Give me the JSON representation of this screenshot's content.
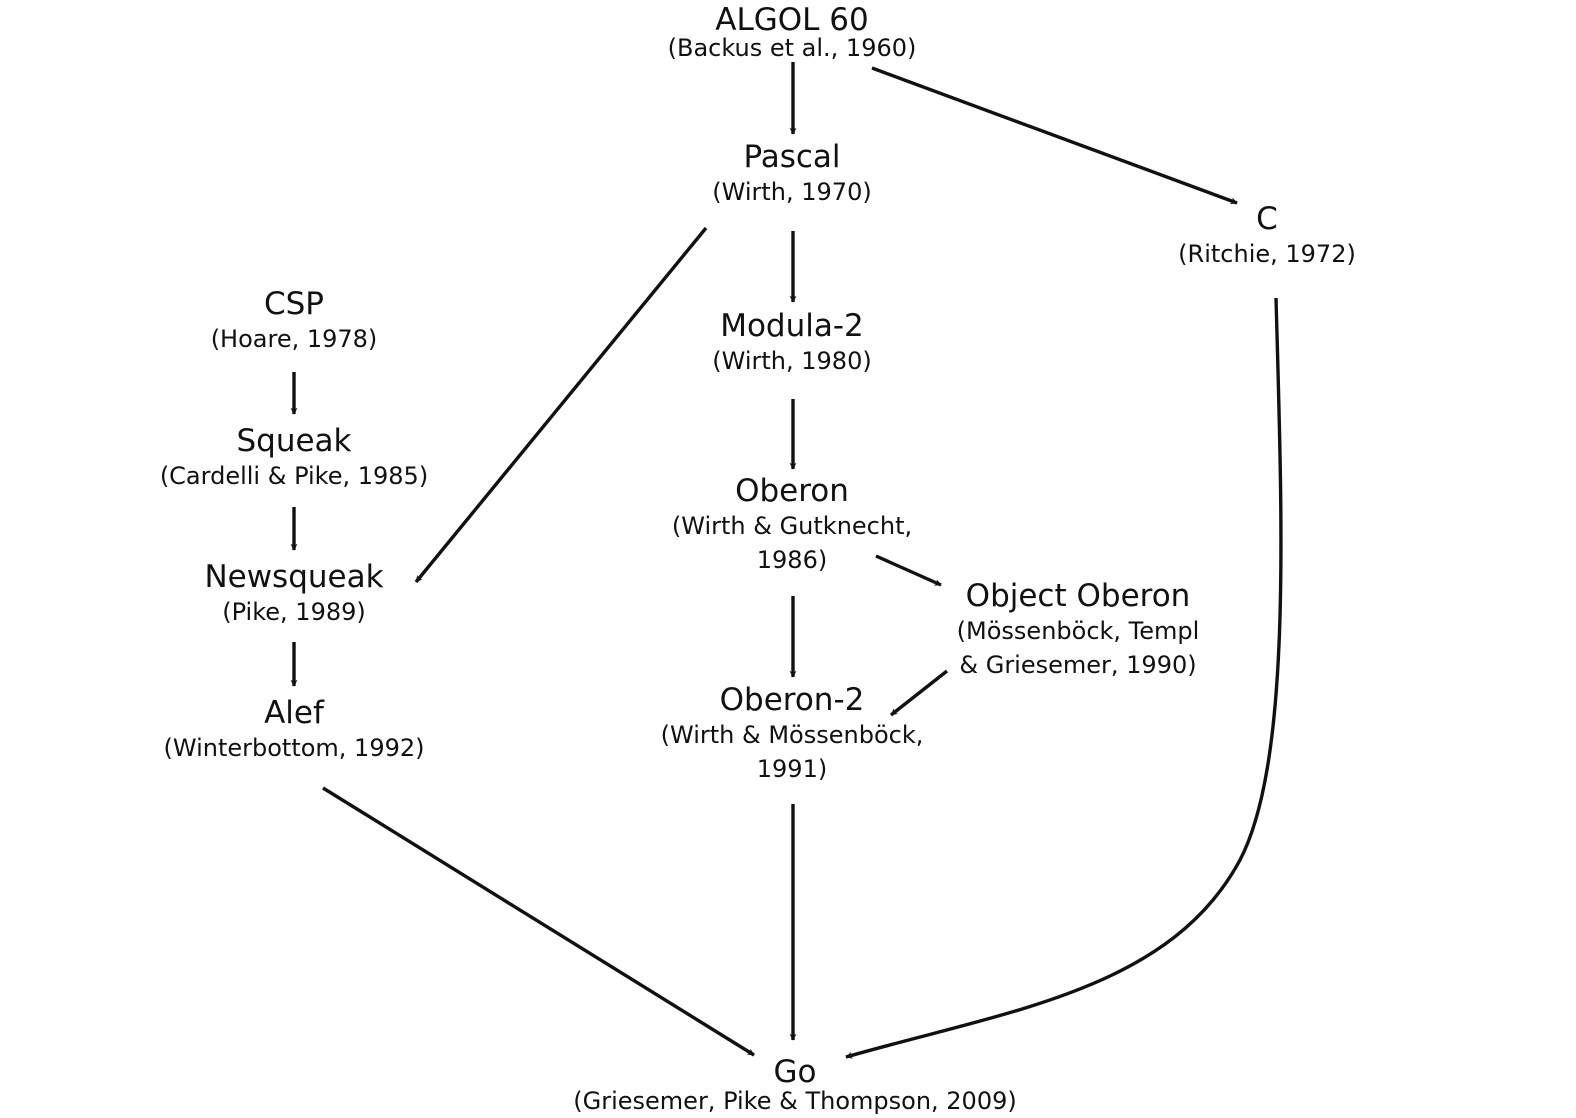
{
  "nodes": {
    "algol60": {
      "name": "ALGOL 60",
      "cite": "(Backus et al., 1960)"
    },
    "pascal": {
      "name": "Pascal",
      "cite": "(Wirth, 1970)"
    },
    "c": {
      "name": "C",
      "cite": "(Ritchie, 1972)"
    },
    "csp": {
      "name": "CSP",
      "cite": "(Hoare, 1978)"
    },
    "modula2": {
      "name": "Modula-2",
      "cite": "(Wirth, 1980)"
    },
    "squeak": {
      "name": "Squeak",
      "cite": "(Cardelli & Pike, 1985)"
    },
    "oberon": {
      "name": "Oberon",
      "cite_1": "(Wirth & Gutknecht,",
      "cite_2": "1986)"
    },
    "newsqueak": {
      "name": "Newsqueak",
      "cite": "(Pike, 1989)"
    },
    "objoberon": {
      "name": "Object Oberon",
      "cite_1": "(Mössenböck, Templ",
      "cite_2": "& Griesemer, 1990)"
    },
    "oberon2": {
      "name": "Oberon-2",
      "cite_1": "(Wirth & Mössenböck,",
      "cite_2": "1991)"
    },
    "alef": {
      "name": "Alef",
      "cite": "(Winterbottom, 1992)"
    },
    "go": {
      "name": "Go",
      "cite": "(Griesemer, Pike & Thompson, 2009)"
    }
  },
  "edges": [
    {
      "from": "algol60",
      "to": "pascal"
    },
    {
      "from": "algol60",
      "to": "c"
    },
    {
      "from": "pascal",
      "to": "modula2"
    },
    {
      "from": "pascal",
      "to": "newsqueak"
    },
    {
      "from": "csp",
      "to": "squeak"
    },
    {
      "from": "squeak",
      "to": "newsqueak"
    },
    {
      "from": "newsqueak",
      "to": "alef"
    },
    {
      "from": "modula2",
      "to": "oberon"
    },
    {
      "from": "oberon",
      "to": "objoberon"
    },
    {
      "from": "oberon",
      "to": "oberon2"
    },
    {
      "from": "objoberon",
      "to": "oberon2"
    },
    {
      "from": "alef",
      "to": "go"
    },
    {
      "from": "oberon2",
      "to": "go"
    },
    {
      "from": "c",
      "to": "go"
    }
  ]
}
